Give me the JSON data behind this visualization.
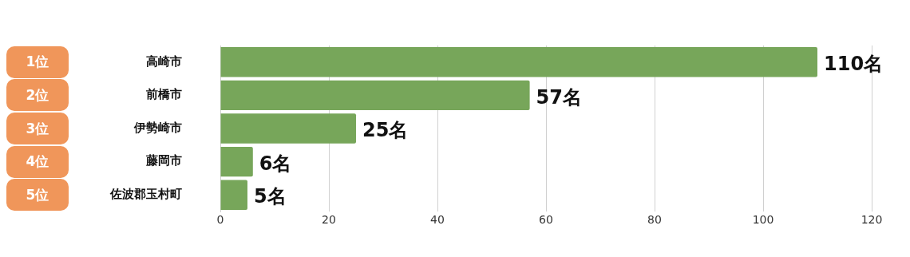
{
  "chart_data": {
    "type": "bar",
    "orientation": "horizontal",
    "categories": [
      "高崎市",
      "前橋市",
      "伊勢崎市",
      "藤岡市",
      "佐波郡玉村町"
    ],
    "values": [
      110,
      57,
      25,
      6,
      5
    ],
    "value_labels": [
      "110名",
      "57名",
      "25名",
      "6名",
      "5名"
    ],
    "color": "#77a65a",
    "annotations": [
      "1位",
      "2位",
      "3位",
      "4位",
      "5位"
    ],
    "xlim": [
      0,
      120
    ],
    "xticks": [
      0,
      20,
      40,
      60,
      80,
      100,
      120
    ],
    "grid": "x",
    "legend": false
  }
}
